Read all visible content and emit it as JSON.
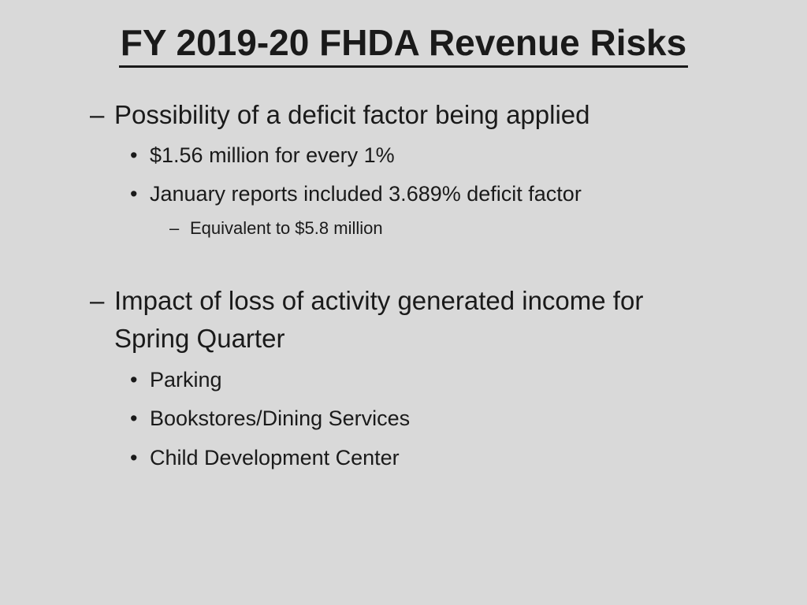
{
  "title": "FY 2019-20 FHDA Revenue Risks",
  "markers": {
    "dash": "–",
    "bullet": "•"
  },
  "sections": [
    {
      "heading": "Possibility of a deficit factor being applied",
      "bullets": [
        {
          "text": "$1.56 million for every 1%"
        },
        {
          "text": "January reports included 3.689% deficit factor",
          "subitems": [
            "Equivalent to $5.8 million"
          ]
        }
      ]
    },
    {
      "heading_line1": "Impact of loss of activity generated income for",
      "heading_line2": "Spring Quarter",
      "bullets": [
        {
          "text": "Parking"
        },
        {
          "text": "Bookstores/Dining Services"
        },
        {
          "text": "Child Development Center"
        }
      ]
    }
  ]
}
